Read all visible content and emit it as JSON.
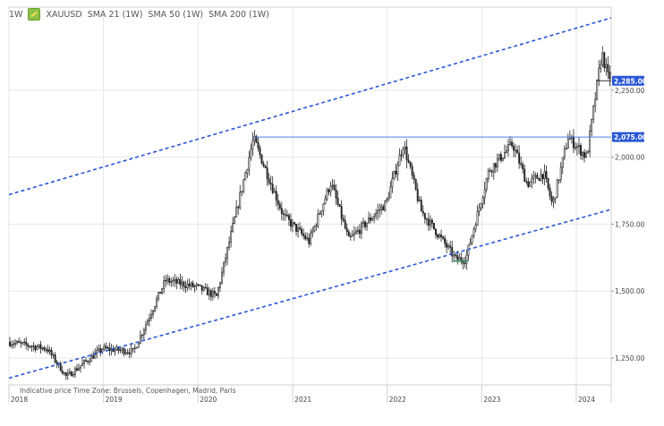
{
  "legend": {
    "interval": "1W",
    "symbol": "XAUUSD",
    "symbol_icon": "gold-bar-icon",
    "indicators": [
      "SMA 21 (1W)",
      "SMA 50 (1W)",
      "SMA 200 (1W)"
    ]
  },
  "footer": {
    "note": "Indicative price   Time Zone: Brussels, Copenhagen, Madrid, Paris"
  },
  "chart_data": {
    "type": "candlestick",
    "interval": "1W",
    "symbol": "XAUUSD",
    "x_range": [
      "2018-01-01",
      "2024-05-15"
    ],
    "ylim": [
      1150,
      2560
    ],
    "y_ticks": [
      {
        "value": 1250,
        "label": "1,250.00"
      },
      {
        "value": 1500,
        "label": "1,500.00"
      },
      {
        "value": 1750,
        "label": "1,750.00"
      },
      {
        "value": 2000,
        "label": "2,000.00"
      },
      {
        "value": 2250,
        "label": "2,250.00"
      }
    ],
    "x_ticks": [
      {
        "date": "2018-01-01",
        "label": "2018"
      },
      {
        "date": "2019-01-01",
        "label": "2019"
      },
      {
        "date": "2020-01-01",
        "label": "2020"
      },
      {
        "date": "2021-01-01",
        "label": "2021"
      },
      {
        "date": "2022-01-01",
        "label": "2022"
      },
      {
        "date": "2023-01-01",
        "label": "2023"
      },
      {
        "date": "2024-01-01",
        "label": "2024"
      }
    ],
    "grid": true,
    "anchors": [
      [
        "2018-01-01",
        1310
      ],
      [
        "2018-06-01",
        1285
      ],
      [
        "2018-08-15",
        1180
      ],
      [
        "2018-12-31",
        1285
      ],
      [
        "2019-05-01",
        1275
      ],
      [
        "2019-09-01",
        1540
      ],
      [
        "2019-12-31",
        1515
      ],
      [
        "2020-03-16",
        1480
      ],
      [
        "2020-08-06",
        2070
      ],
      [
        "2020-11-30",
        1780
      ],
      [
        "2021-03-08",
        1685
      ],
      [
        "2021-06-01",
        1905
      ],
      [
        "2021-08-09",
        1690
      ],
      [
        "2021-12-31",
        1828
      ],
      [
        "2022-03-08",
        2050
      ],
      [
        "2022-05-15",
        1800
      ],
      [
        "2022-09-26",
        1620
      ],
      [
        "2022-11-03",
        1618
      ],
      [
        "2023-02-01",
        1950
      ],
      [
        "2023-05-04",
        2050
      ],
      [
        "2023-06-29",
        1900
      ],
      [
        "2023-09-01",
        1940
      ],
      [
        "2023-10-05",
        1820
      ],
      [
        "2023-12-04",
        2075
      ],
      [
        "2024-02-14",
        2000
      ],
      [
        "2024-04-12",
        2390
      ],
      [
        "2024-05-06",
        2300
      ]
    ],
    "resistance_level": 2075,
    "price_labels": [
      {
        "value": 2285,
        "label": "2,285.00"
      },
      {
        "value": 2075,
        "label": "2,075.00"
      }
    ],
    "channel_upper": {
      "from": [
        "2018-01-01",
        1860
      ],
      "to": [
        "2024-05-15",
        2520
      ]
    },
    "channel_lower": {
      "from": [
        "2018-01-01",
        1175
      ],
      "to": [
        "2024-05-15",
        1805
      ]
    },
    "colors": {
      "candle": "#222222",
      "channel": "#2a57d6",
      "resistance": "#4f7df2",
      "price_box": "#2a57d6",
      "price_box_text": "#ffffff",
      "grid": "#e6e6e6",
      "low_marker": "#2e8b57"
    }
  }
}
